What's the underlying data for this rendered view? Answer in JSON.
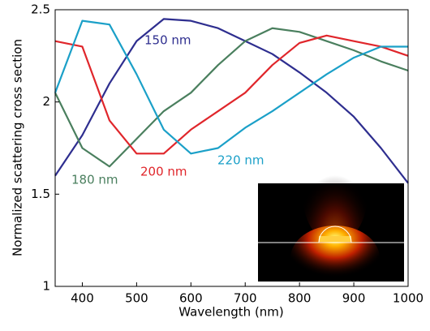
{
  "chart_data": {
    "type": "line",
    "x_label": "Wavelength (nm)",
    "y_label": "Normalized scattering cross section",
    "x": [
      350,
      400,
      450,
      500,
      550,
      600,
      650,
      700,
      750,
      800,
      850,
      900,
      950,
      1000
    ],
    "series": [
      {
        "name": "150 nm",
        "color": "#2e2e8f",
        "values": [
          1.6,
          1.82,
          2.1,
          2.33,
          2.45,
          2.44,
          2.4,
          2.33,
          2.26,
          2.16,
          2.05,
          1.92,
          1.75,
          1.56
        ]
      },
      {
        "name": "180 nm",
        "color": "#4a7f5e",
        "values": [
          2.05,
          1.75,
          1.65,
          1.8,
          1.95,
          2.05,
          2.2,
          2.33,
          2.4,
          2.38,
          2.33,
          2.28,
          2.22,
          2.17
        ]
      },
      {
        "name": "200 nm",
        "color": "#e0262b",
        "values": [
          2.33,
          2.3,
          1.9,
          1.72,
          1.72,
          1.85,
          1.95,
          2.05,
          2.2,
          2.32,
          2.36,
          2.33,
          2.3,
          2.25
        ]
      },
      {
        "name": "220 nm",
        "color": "#1ba0c8",
        "values": [
          2.05,
          2.44,
          2.42,
          2.15,
          1.85,
          1.72,
          1.75,
          1.86,
          1.95,
          2.05,
          2.15,
          2.24,
          2.3,
          2.3
        ]
      }
    ],
    "xlim": [
      350,
      1000
    ],
    "xticks": [
      400,
      500,
      600,
      700,
      800,
      900,
      1000
    ],
    "ylim": [
      1,
      2.5
    ],
    "yticks": [
      1,
      1.5,
      2,
      2.5
    ]
  }
}
